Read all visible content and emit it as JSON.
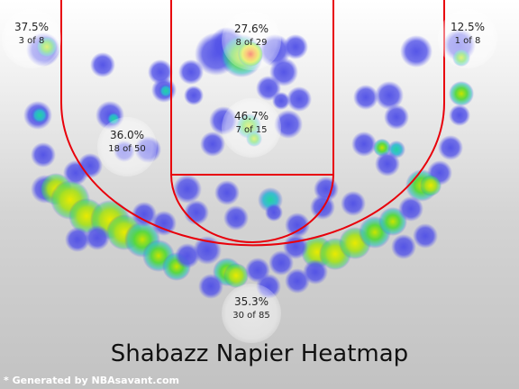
{
  "chart_data": {
    "type": "heatmap",
    "title": "Shabazz Napier Heatmap",
    "credit": "* Generated by NBAsavant.com",
    "zones": [
      {
        "id": "left-corner-three",
        "pct": "37.5%",
        "made_of": "3 of 8"
      },
      {
        "id": "restricted-area",
        "pct": "27.6%",
        "made_of": "8 of 29"
      },
      {
        "id": "right-corner-three",
        "pct": "12.5%",
        "made_of": "1 of 8"
      },
      {
        "id": "paint-non-ra",
        "pct": "46.7%",
        "made_of": "7 of 15"
      },
      {
        "id": "mid-range",
        "pct": "36.0%",
        "made_of": "18 of 50"
      },
      {
        "id": "above-break-three",
        "pct": "35.3%",
        "made_of": "30 of 85"
      }
    ],
    "court_line_color": "#e8000b",
    "heat_colors": [
      "#5555ee",
      "#22c6b0",
      "#66dd33",
      "#dddd00",
      "#ee2200"
    ]
  }
}
